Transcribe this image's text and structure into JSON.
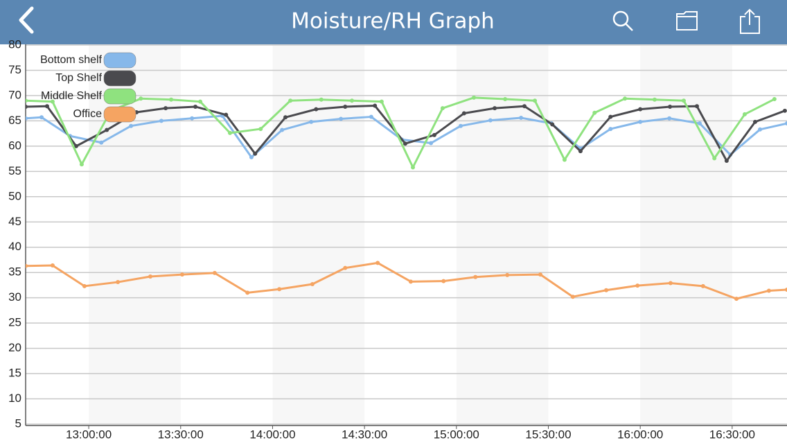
{
  "header": {
    "title": "Moisture/RH Graph"
  },
  "chart_data": {
    "type": "line",
    "legend": "upper left",
    "grid": true,
    "xlim": [
      759.4,
      1007.9
    ],
    "xticks": [
      {
        "value": 780,
        "label": "13:00:00"
      },
      {
        "value": 810,
        "label": "13:30:00"
      },
      {
        "value": 840,
        "label": "14:00:00"
      },
      {
        "value": 870,
        "label": "14:30:00"
      },
      {
        "value": 900,
        "label": "15:00:00"
      },
      {
        "value": 930,
        "label": "15:30:00"
      },
      {
        "value": 960,
        "label": "16:00:00"
      },
      {
        "value": 990,
        "label": "16:30:00"
      }
    ],
    "ylim": [
      5,
      80
    ],
    "yticks": [
      5,
      10,
      15,
      20,
      25,
      30,
      35,
      40,
      45,
      50,
      55,
      60,
      65,
      70,
      75,
      80
    ],
    "series": [
      {
        "name": "Bottom shelf",
        "color": "#86b8ea",
        "x": [
          759.4,
          764.6,
          773.9,
          784.1,
          793.8,
          803.7,
          813.7,
          823.6,
          833.1,
          843.1,
          852.6,
          862.3,
          872.2,
          882.2,
          891.7,
          901.4,
          911.1,
          921.1,
          931.0,
          940.5,
          950.3,
          960.0,
          969.5,
          979.4,
          989.4,
          999.1,
          1007.9
        ],
        "values": [
          65.5,
          65.7,
          62,
          60.7,
          64,
          65,
          65.5,
          66,
          57.8,
          63.2,
          64.8,
          65.4,
          65.8,
          61.3,
          60.6,
          64,
          65.1,
          65.6,
          64.5,
          59.5,
          63.4,
          64.8,
          65.5,
          64.5,
          58.3,
          63.3,
          64.5
        ]
      },
      {
        "name": "Top Shelf",
        "color": "#4a4a4e",
        "x": [
          759.4,
          766.4,
          775.9,
          785.9,
          795.6,
          805.1,
          814.8,
          824.8,
          834.3,
          844.2,
          854.2,
          863.7,
          873.4,
          883.3,
          892.8,
          902.5,
          912.5,
          922.2,
          931.3,
          940.5,
          950.3,
          960.0,
          969.7,
          978.5,
          988.2,
          997.5,
          1007.2
        ],
        "values": [
          67.8,
          67.9,
          60,
          63.2,
          66.7,
          67.5,
          67.8,
          66.2,
          58.5,
          65.7,
          67.3,
          67.8,
          68,
          60.5,
          62.2,
          66.5,
          67.5,
          67.9,
          64.3,
          59,
          65.8,
          67.3,
          67.8,
          67.9,
          57.1,
          64.8,
          67
        ]
      },
      {
        "name": "Middle Shelf",
        "color": "#8fe27f",
        "x": [
          759.4,
          768.2,
          777.7,
          787.2,
          797.0,
          806.9,
          816.4,
          826.1,
          836.1,
          845.8,
          855.9,
          865.9,
          875.6,
          885.8,
          895.5,
          905.7,
          915.9,
          925.6,
          935.3,
          945.1,
          955.0,
          964.7,
          974.2,
          984.2,
          994.1,
          1003.8
        ],
        "values": [
          69,
          68.8,
          56.4,
          67,
          69.4,
          69.2,
          68.8,
          62.6,
          63.4,
          69,
          69.2,
          69,
          68.8,
          55.8,
          67.5,
          69.6,
          69.3,
          69,
          57.3,
          66.6,
          69.4,
          69.2,
          69,
          57.6,
          66.3,
          69.3
        ]
      },
      {
        "name": "Office",
        "color": "#f5a462",
        "x": [
          759.4,
          768.2,
          778.6,
          789.5,
          800.1,
          810.5,
          821.1,
          831.8,
          842.2,
          853.0,
          863.7,
          874.3,
          885.1,
          895.8,
          906.2,
          916.6,
          927.4,
          938.0,
          948.9,
          959.1,
          969.9,
          980.5,
          991.4,
          1002.0,
          1007.9
        ],
        "values": [
          36.3,
          36.4,
          32.3,
          33.1,
          34.2,
          34.6,
          34.9,
          31.0,
          31.7,
          32.7,
          35.9,
          36.9,
          33.2,
          33.3,
          34.1,
          34.5,
          34.6,
          30.2,
          31.5,
          32.4,
          32.9,
          32.3,
          29.8,
          31.4,
          31.6
        ]
      }
    ]
  }
}
